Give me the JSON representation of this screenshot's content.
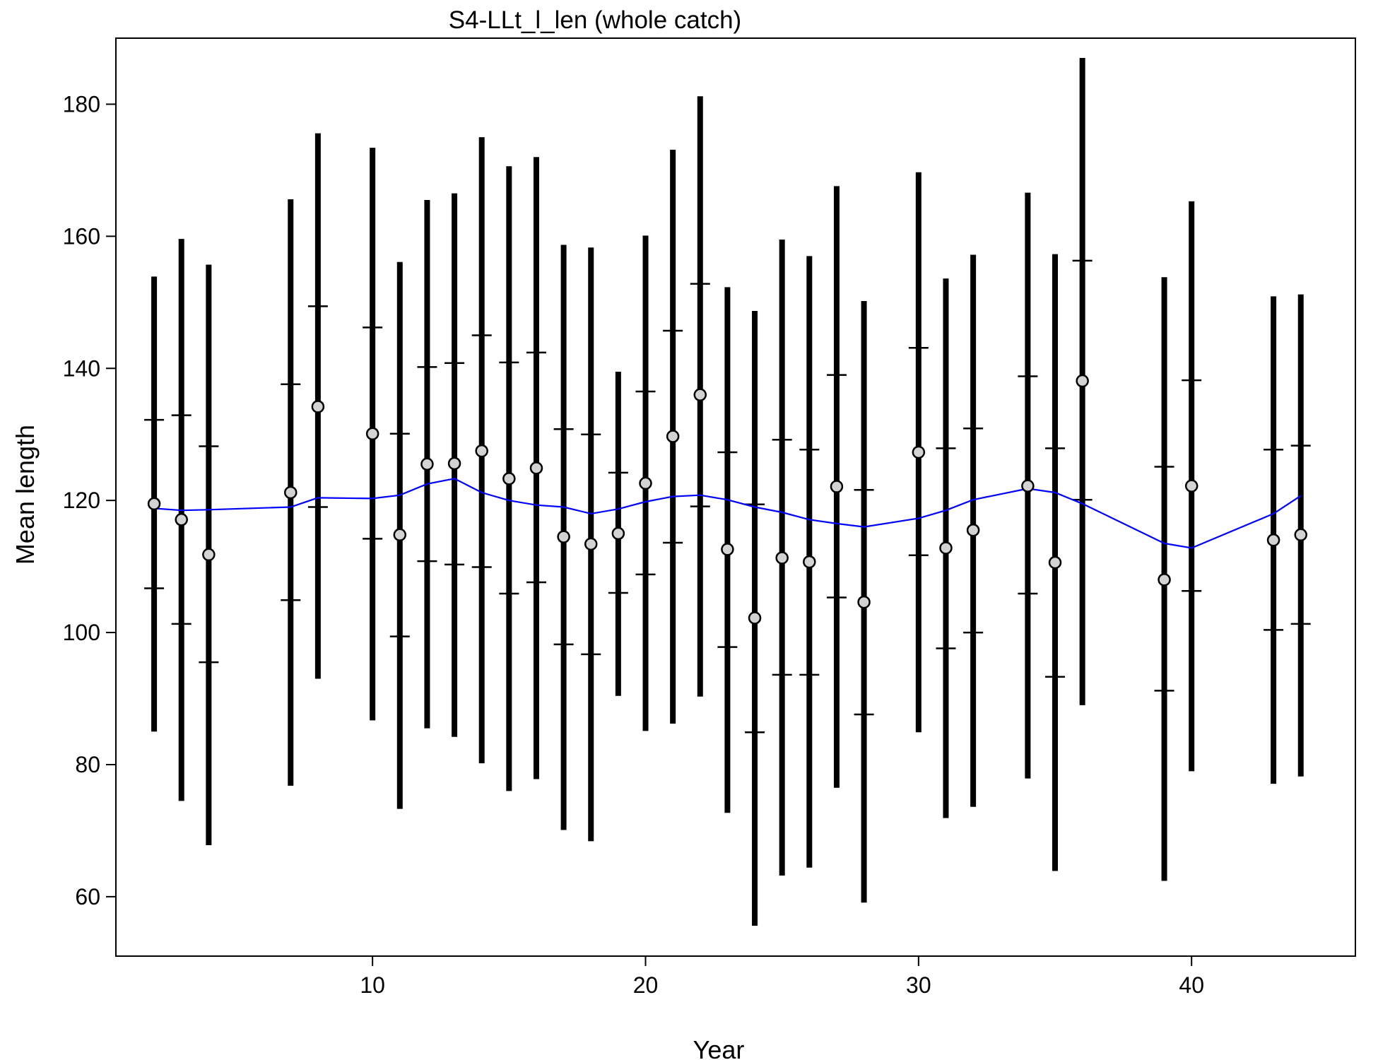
{
  "chart_data": {
    "type": "scatter",
    "title": "S4-LLt_l_len (whole catch)",
    "xlabel": "Year",
    "ylabel": "Mean length",
    "xlim": [
      0.6,
      46
    ],
    "ylim": [
      51,
      190
    ],
    "x_ticks": [
      10,
      20,
      30,
      40
    ],
    "y_ticks": [
      60,
      80,
      100,
      120,
      140,
      160,
      180
    ],
    "grid": false,
    "legend": "none",
    "colors": {
      "observed_fill": "#d3d3d3",
      "expected_line": "#0000ff",
      "interval": "#000000"
    },
    "series": [
      {
        "marker": "circle",
        "x": [
          2,
          3,
          4,
          7,
          8,
          10,
          11,
          12,
          13,
          14,
          15,
          16,
          17,
          18,
          19,
          20,
          21,
          22,
          23,
          24,
          25,
          26,
          27,
          28,
          30,
          31,
          32,
          34,
          35,
          36,
          39,
          40,
          43,
          44
        ],
        "observed": [
          119.5,
          117.1,
          111.8,
          121.2,
          134.2,
          130.1,
          114.8,
          125.5,
          125.6,
          127.5,
          123.3,
          124.9,
          114.5,
          113.4,
          115.0,
          122.6,
          129.7,
          136.0,
          112.6,
          102.2,
          111.3,
          110.7,
          122.1,
          104.6,
          127.3,
          112.8,
          115.5,
          122.2,
          110.6,
          138.1,
          108.0,
          122.2,
          114.0,
          114.8
        ],
        "expected": [
          118.8,
          118.5,
          118.6,
          119.0,
          120.4,
          120.3,
          120.8,
          122.5,
          123.3,
          121.2,
          120.0,
          119.3,
          119.0,
          118.0,
          118.7,
          119.8,
          120.6,
          120.8,
          120.1,
          119.0,
          118.2,
          117.1,
          116.5,
          116.0,
          117.3,
          118.5,
          120.1,
          121.8,
          121.2,
          119.5,
          113.5,
          112.8,
          118.0,
          120.7
        ],
        "inner_lo": [
          106.7,
          101.3,
          95.5,
          104.9,
          119.0,
          114.2,
          99.4,
          110.8,
          110.3,
          109.9,
          105.9,
          107.6,
          98.2,
          96.7,
          106.0,
          108.8,
          113.6,
          119.1,
          97.8,
          84.9,
          93.6,
          93.6,
          105.3,
          87.6,
          111.7,
          97.6,
          100.0,
          105.9,
          93.3,
          120.1,
          91.2,
          106.3,
          100.4,
          101.3
        ],
        "inner_hi": [
          132.2,
          132.9,
          128.2,
          137.6,
          149.4,
          146.2,
          130.1,
          140.2,
          140.8,
          145.0,
          140.9,
          142.4,
          130.8,
          130.0,
          124.2,
          136.5,
          145.7,
          152.8,
          127.3,
          119.4,
          129.2,
          127.7,
          139.0,
          121.6,
          143.1,
          127.9,
          130.9,
          138.8,
          127.9,
          156.3,
          125.1,
          138.2,
          127.7,
          128.3
        ],
        "outer_lo": [
          85,
          74.5,
          67.8,
          76.8,
          93.0,
          86.7,
          73.3,
          85.5,
          84.2,
          80.2,
          76.0,
          77.8,
          70.1,
          68.4,
          90.4,
          85.1,
          86.2,
          90.3,
          72.7,
          55.6,
          63.2,
          64.4,
          76.5,
          59.1,
          84.9,
          71.9,
          73.6,
          77.9,
          63.9,
          89.0,
          62.4,
          79.0,
          77.1,
          78.2
        ],
        "outer_hi": [
          153.9,
          159.6,
          155.7,
          165.6,
          175.6,
          173.4,
          156.1,
          165.5,
          166.5,
          175.0,
          170.6,
          172.0,
          158.7,
          158.3,
          139.5,
          160.1,
          173.1,
          181.2,
          152.3,
          148.7,
          159.5,
          157.0,
          167.6,
          150.2,
          169.7,
          153.6,
          157.2,
          166.6,
          157.3,
          187.0,
          153.8,
          165.3,
          150.9,
          151.2
        ]
      }
    ]
  }
}
